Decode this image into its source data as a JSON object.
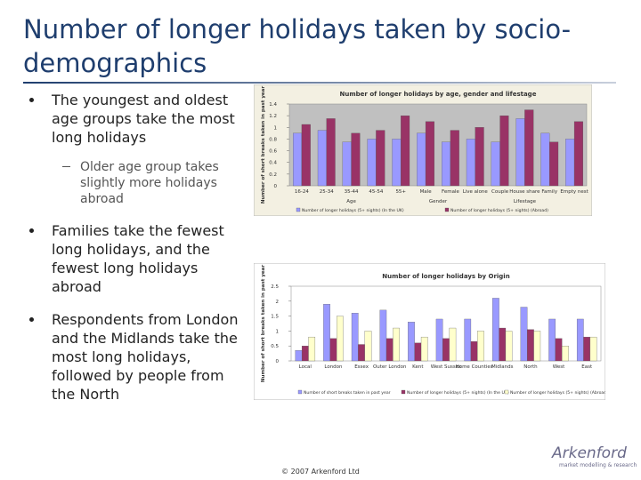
{
  "header": {
    "title": "Number of longer holidays taken by socio-demographics"
  },
  "bullets": [
    {
      "text": "The youngest and oldest age groups take the most long holidays",
      "sub": [
        "Older age group takes slightly more holidays abroad"
      ]
    },
    {
      "text": "Families take the fewest long holidays, and the fewest long holidays abroad",
      "sub": []
    },
    {
      "text": "Respondents from London and the Midlands take the most long holidays, followed by people from the North",
      "sub": []
    }
  ],
  "footer": {
    "copyright": "© 2007 Arkenford Ltd",
    "logo": "Arkenford",
    "tagline": "market modelling & research"
  },
  "chart_data": [
    {
      "type": "bar",
      "title": "Number of longer holidays by age, gender and lifestage",
      "y_label": "Number of short breaks taken in past year",
      "categories": [
        "16-24",
        "25-34",
        "35-44",
        "45-54",
        "55+",
        "Male",
        "Female",
        "Live alone",
        "Couple",
        "House share",
        "Family",
        "Empty nest"
      ],
      "group_labels": [
        "Age",
        "Gender",
        "Lifestage"
      ],
      "series": [
        {
          "name": "Number of longer holidays (5+ nights) (In the UK)",
          "color": "#9999ff",
          "values": [
            0.9,
            0.95,
            0.75,
            0.8,
            0.8,
            0.9,
            0.75,
            0.8,
            0.75,
            1.15,
            0.9,
            0.8
          ]
        },
        {
          "name": "Number of longer holidays (5+ nights) (Abroad)",
          "color": "#993366",
          "values": [
            1.05,
            1.15,
            0.9,
            0.95,
            1.2,
            1.1,
            0.95,
            1.0,
            1.2,
            1.3,
            0.75,
            1.1
          ]
        }
      ],
      "ylim": [
        0,
        1.4
      ],
      "yticks": [
        0,
        0.2,
        0.4,
        0.6,
        0.8,
        1,
        1.2,
        1.4
      ],
      "grid": false
    },
    {
      "type": "bar",
      "title": "Number of longer holidays by Origin",
      "y_label": "Number of short breaks taken in past year",
      "categories": [
        "Local",
        "London",
        "Essex",
        "Outer London",
        "Kent",
        "West Sussex",
        "Home Counties",
        "Midlands",
        "North",
        "West",
        "East"
      ],
      "series": [
        {
          "name": "Number of short breaks taken in past year",
          "color": "#9999ff",
          "values": [
            0.35,
            1.9,
            1.6,
            1.7,
            1.3,
            1.4,
            1.4,
            2.1,
            1.8,
            1.4,
            1.4
          ]
        },
        {
          "name": "Number of longer holidays (5+ nights) (In the UK)",
          "color": "#993366",
          "values": [
            0.5,
            0.75,
            0.55,
            0.75,
            0.6,
            0.75,
            0.65,
            1.1,
            1.05,
            0.75,
            0.8
          ]
        },
        {
          "name": "Number of longer holidays (5+ nights) (Abroad)",
          "color": "#ffffcc",
          "values": [
            0.8,
            1.5,
            1.0,
            1.1,
            0.8,
            1.1,
            1.0,
            1.0,
            1.0,
            0.5,
            0.8
          ]
        }
      ],
      "ylim": [
        0,
        2.5
      ],
      "yticks": [
        0,
        0.5,
        1,
        1.5,
        2,
        2.5
      ],
      "grid": false
    }
  ]
}
